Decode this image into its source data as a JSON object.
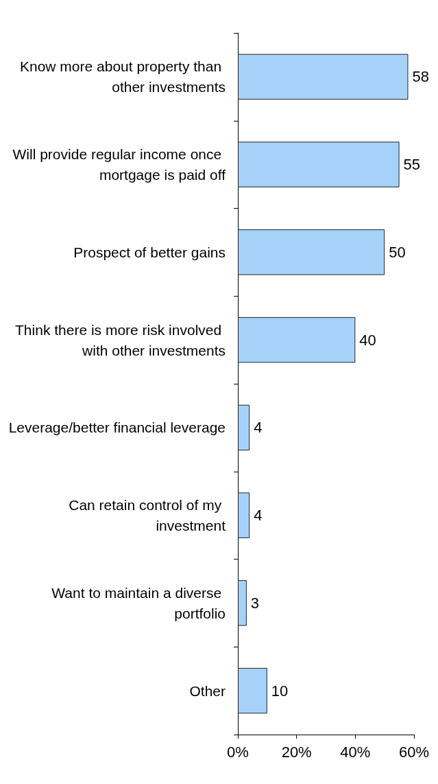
{
  "chart_data": {
    "type": "bar",
    "orientation": "horizontal",
    "categories": [
      "Know more about property than other investments",
      "Will provide regular income once mortgage is paid off",
      "Prospect of better gains",
      "Think there is more risk involved with other investments",
      "Leverage/better financial leverage",
      "Can retain control of my investment",
      "Want to maintain a diverse portfolio",
      "Other"
    ],
    "values": [
      58,
      55,
      50,
      40,
      4,
      4,
      3,
      10
    ],
    "color": "#a6d2fa",
    "xlim": [
      0,
      60
    ],
    "xticks": [
      {
        "value": 0,
        "label": "0%"
      },
      {
        "value": 20,
        "label": "20%"
      },
      {
        "value": 40,
        "label": "40%"
      },
      {
        "value": 60,
        "label": "60%"
      }
    ],
    "data_labels": true,
    "grid": false
  }
}
